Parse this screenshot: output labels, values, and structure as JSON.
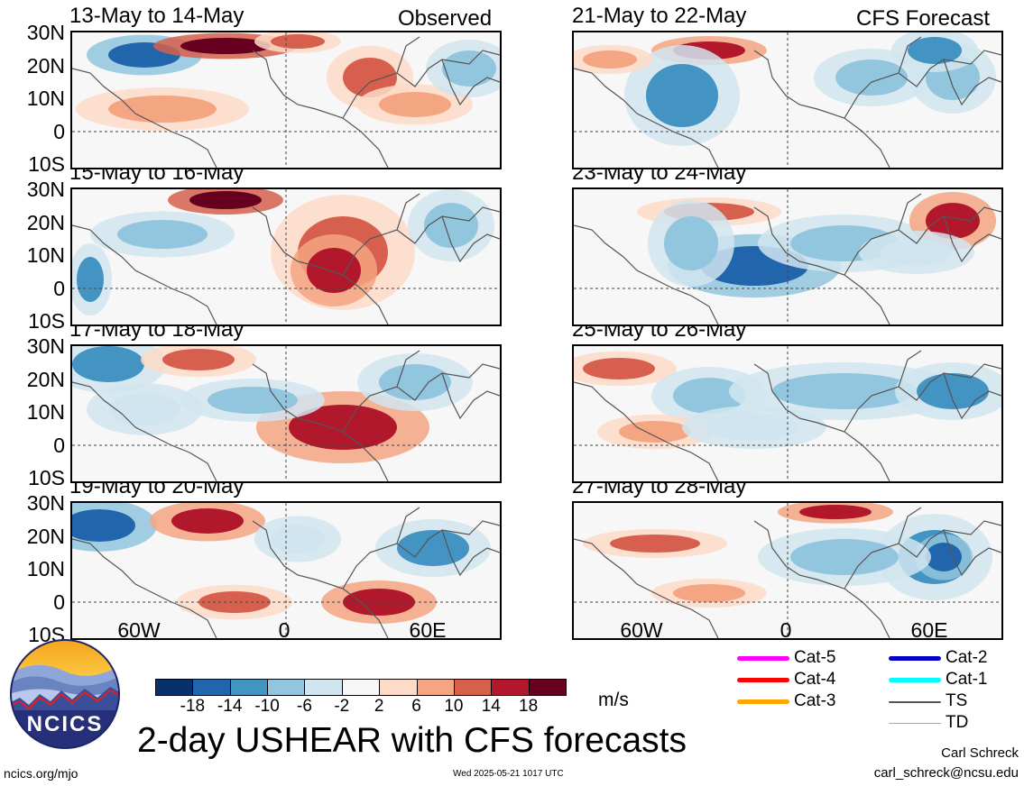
{
  "figure": {
    "title": "2-day USHEAR with CFS forecasts",
    "unit": "m/s",
    "url": "ncics.org/mjo",
    "timestamp": "Wed 2025-05-21 1017 UTC",
    "author": "Carl Schreck",
    "email": "carl_schreck@ncsu.edu",
    "logo_text": "NCICS"
  },
  "columns": {
    "left_label": "Observed",
    "right_label": "CFS Forecast"
  },
  "panels": {
    "observed": [
      "13-May to 14-May",
      "15-May to 16-May",
      "17-May to 18-May",
      "19-May to 20-May"
    ],
    "forecast": [
      "21-May to 22-May",
      "23-May to 24-May",
      "25-May to 26-May",
      "27-May to 28-May"
    ]
  },
  "axes": {
    "lat_ticks": [
      "30N",
      "20N",
      "10N",
      "0",
      "10S"
    ],
    "lon_ticks": [
      "60W",
      "0",
      "60E"
    ]
  },
  "colorbar": {
    "labels": [
      "-18",
      "-14",
      "-10",
      "-6",
      "-2",
      "2",
      "6",
      "10",
      "14",
      "18"
    ],
    "colors": [
      "#08306b",
      "#2166ac",
      "#4393c3",
      "#92c5de",
      "#d1e5f0",
      "#f7f7f7",
      "#fddbc7",
      "#f4a582",
      "#d6604d",
      "#b2182b",
      "#67001f"
    ]
  },
  "legend": [
    {
      "label": "Cat-5",
      "color": "#ff00ff"
    },
    {
      "label": "Cat-4",
      "color": "#ff0000"
    },
    {
      "label": "Cat-3",
      "color": "#ffa500"
    },
    {
      "label": "Cat-2",
      "color": "#0000cc"
    },
    {
      "label": "Cat-1",
      "color": "#00ffff"
    },
    {
      "label": "TS",
      "color": "#555555"
    },
    {
      "label": "TD",
      "color": "#aaaaaa"
    }
  ]
}
